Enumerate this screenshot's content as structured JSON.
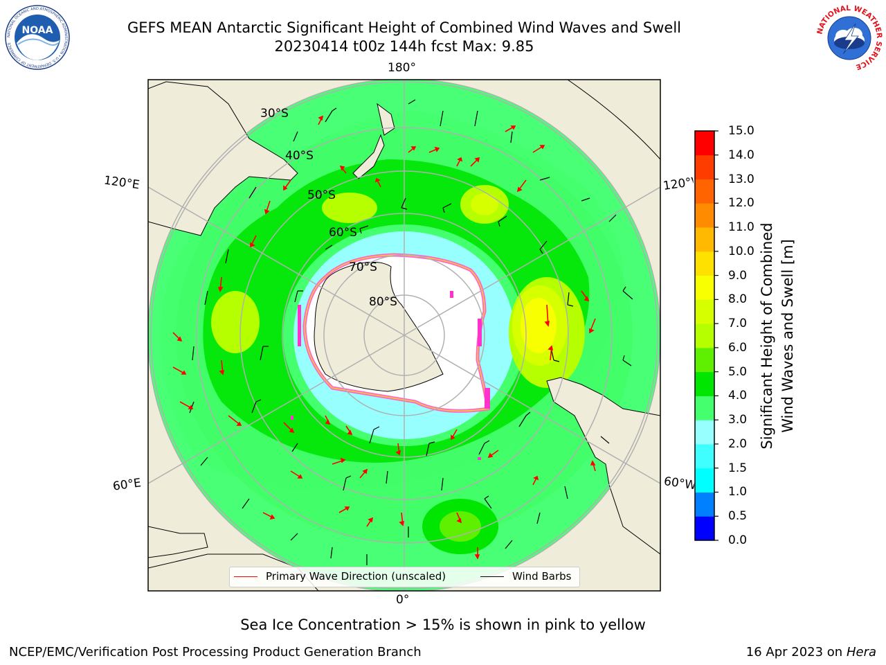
{
  "header": {
    "title_line1": "GEFS MEAN Antarctic Significant Height of Combined Wind Waves and Swell",
    "title_line2": "20230414 t00z 144h fcst   Max: 9.85"
  },
  "logos": {
    "left": {
      "name": "noaa-logo",
      "text": "NOAA",
      "ring_text": "NATIONAL OCEANIC AND ATMOSPHERIC ADMINISTRATION • U.S. DEPARTMENT OF COMMERCE"
    },
    "right": {
      "name": "national-weather-service-logo",
      "ring_text": "NATIONAL WEATHER SERVICE"
    }
  },
  "map": {
    "projection": "south-polar-stereographic",
    "longitude_labels": {
      "top": "180°",
      "bottom": "0°",
      "left_upper": "120°E",
      "left_lower": "60°E",
      "right_upper": "120°W",
      "right_lower": "60°W"
    },
    "latitude_labels": [
      "30°S",
      "40°S",
      "50°S",
      "60°S",
      "70°S",
      "80°S"
    ],
    "legend": [
      {
        "label": "Primary Wave Direction (unscaled)",
        "color": "#ff0000"
      },
      {
        "label": "Wind Barbs",
        "color": "#000000"
      }
    ],
    "sea_ice_note": "Sea Ice Concentration > 15% is shown in pink to yellow"
  },
  "colorbar": {
    "label_line1": "Significant Height of Combined",
    "label_line2": "Wind Waves and Swell [m]",
    "ticks": [
      "0.0",
      "0.5",
      "1.0",
      "1.5",
      "2.0",
      "3.0",
      "4.0",
      "5.0",
      "6.0",
      "7.0",
      "8.0",
      "9.0",
      "10.0",
      "11.0",
      "12.0",
      "13.0",
      "14.0",
      "15.0"
    ],
    "colors": [
      "#0000ff",
      "#0080ff",
      "#00ffff",
      "#40ffff",
      "#98ffff",
      "#44ff6e",
      "#00e600",
      "#5ef000",
      "#b5ff00",
      "#d6ff00",
      "#f7ff00",
      "#ffe100",
      "#ffb900",
      "#ff8c00",
      "#ff6400",
      "#ff3c00",
      "#ff0000"
    ]
  },
  "footer": {
    "left": "NCEP/EMC/Verification Post Processing Product Generation Branch",
    "right_date": "16 Apr 2023 on",
    "right_machine": "Hera"
  }
}
